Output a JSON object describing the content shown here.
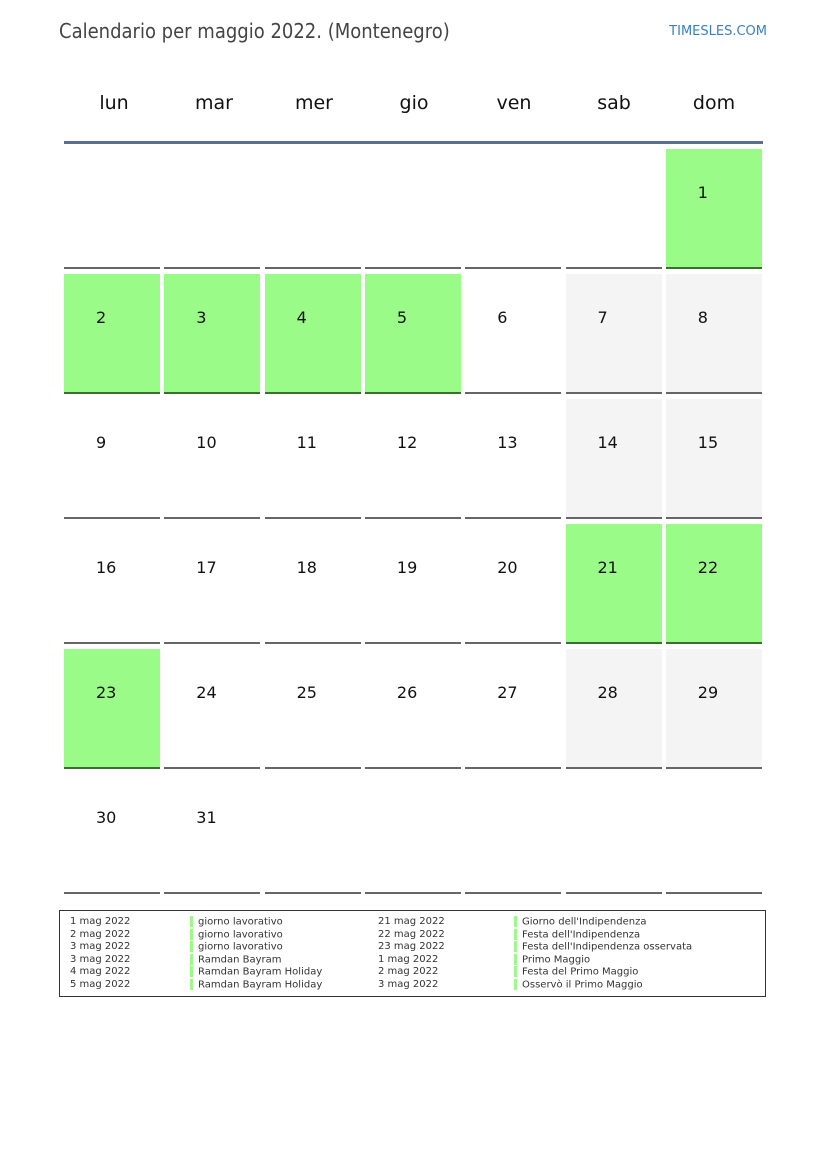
{
  "header": {
    "title": "Calendario per maggio 2022. (Montenegro)",
    "brand": "TIMESLES.COM"
  },
  "weekdays": [
    "lun",
    "mar",
    "mer",
    "gio",
    "ven",
    "sab",
    "dom"
  ],
  "colors": {
    "holiday": "#9afb88",
    "weekend": "#f4f4f4",
    "header_line": "#5a6f90",
    "brand": "#3a7fc1"
  },
  "calendar": {
    "first_weekday_index": 6,
    "days_in_month": 31,
    "holidays": [
      1,
      2,
      3,
      4,
      5,
      21,
      22,
      23
    ]
  },
  "legend": {
    "left": [
      {
        "date": "1 mag 2022",
        "name": "giorno lavorativo"
      },
      {
        "date": "2 mag 2022",
        "name": "giorno lavorativo"
      },
      {
        "date": "3 mag 2022",
        "name": "giorno lavorativo"
      },
      {
        "date": "3 mag 2022",
        "name": "Ramdan Bayram"
      },
      {
        "date": "4 mag 2022",
        "name": "Ramdan Bayram Holiday"
      },
      {
        "date": "5 mag 2022",
        "name": "Ramdan Bayram Holiday"
      }
    ],
    "right": [
      {
        "date": "21 mag 2022",
        "name": "Giorno dell'Indipendenza"
      },
      {
        "date": "22 mag 2022",
        "name": "Festa dell'Indipendenza"
      },
      {
        "date": "23 mag 2022",
        "name": "Festa dell'Indipendenza osservata"
      },
      {
        "date": "1 mag 2022",
        "name": "Primo Maggio"
      },
      {
        "date": "2 mag 2022",
        "name": "Festa del Primo Maggio"
      },
      {
        "date": "3 mag 2022",
        "name": "Osservò il Primo Maggio"
      }
    ]
  }
}
